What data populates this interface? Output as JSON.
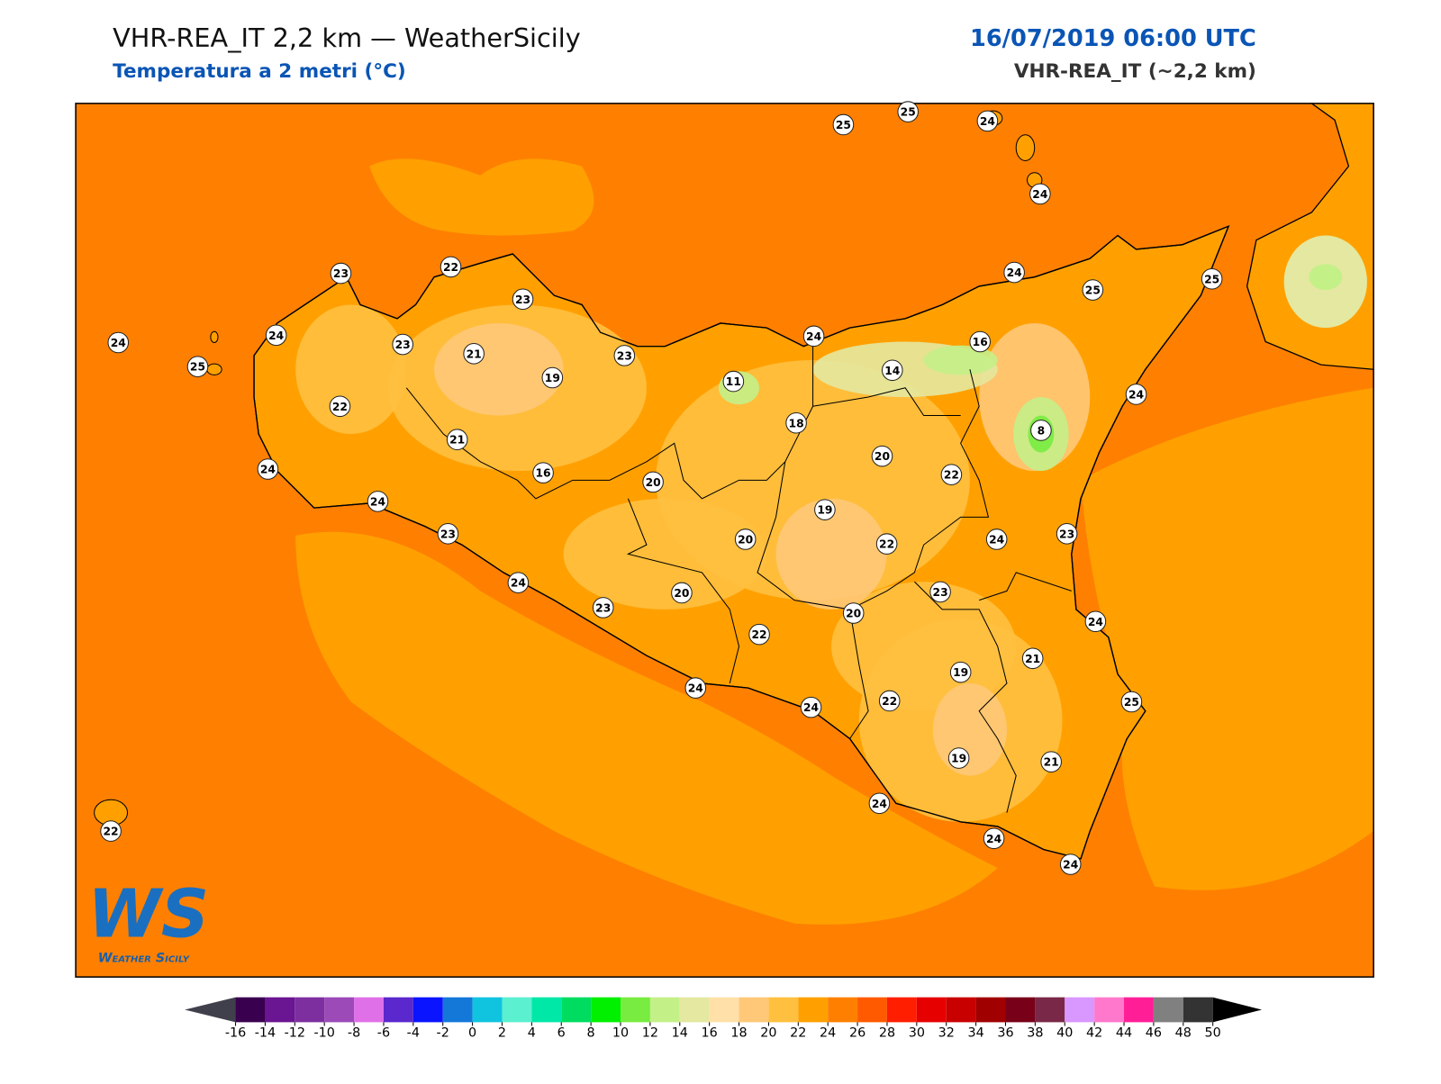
{
  "header": {
    "title": "VHR-REA_IT 2,2 km — WeatherSicily",
    "subtitle": "Temperatura a 2 metri (°C)",
    "datetime": "16/07/2019 06:00 UTC",
    "model": "VHR-REA_IT (~2,2 km)"
  },
  "stations": [
    25,
    25,
    24,
    24,
    23,
    22,
    23,
    24,
    24,
    23,
    21,
    25,
    19,
    23,
    11,
    24,
    14,
    16,
    24,
    25,
    25,
    24,
    22,
    18,
    8,
    21,
    20,
    22,
    24,
    16,
    20,
    24,
    19,
    23,
    20,
    22,
    24,
    23,
    24,
    20,
    23,
    23,
    20,
    24,
    22,
    21,
    19,
    24,
    24,
    22,
    25,
    19,
    21,
    24,
    22,
    24,
    24
  ],
  "colorbar": {
    "ticks": [
      -16,
      -14,
      -12,
      -10,
      -8,
      -6,
      -4,
      -2,
      0,
      2,
      4,
      6,
      8,
      10,
      12,
      14,
      16,
      18,
      20,
      22,
      24,
      26,
      28,
      30,
      32,
      34,
      36,
      38,
      40,
      42,
      44,
      46,
      48,
      50
    ],
    "colors": [
      "#3a0050",
      "#6a1591",
      "#7d2fa0",
      "#9b4ab8",
      "#e070e8",
      "#5a28cc",
      "#0a14ff",
      "#1478d8",
      "#10c4e0",
      "#5af0d0",
      "#00e8a8",
      "#00dc60",
      "#00f000",
      "#78ec40",
      "#c4f088",
      "#e4e8a0",
      "#ffe0a8",
      "#ffc878",
      "#ffc040",
      "#ffa000",
      "#ff8000",
      "#ff5a00",
      "#ff1e00",
      "#e60000",
      "#c80000",
      "#a00000",
      "#780018",
      "#7a2848",
      "#d898ff",
      "#ff78cc",
      "#ff1e96",
      "#808080",
      "#333333"
    ],
    "under_color": "#40404c",
    "over_color": "#000000"
  },
  "logo": {
    "mark": "WS",
    "name": "Weather Sicily"
  }
}
